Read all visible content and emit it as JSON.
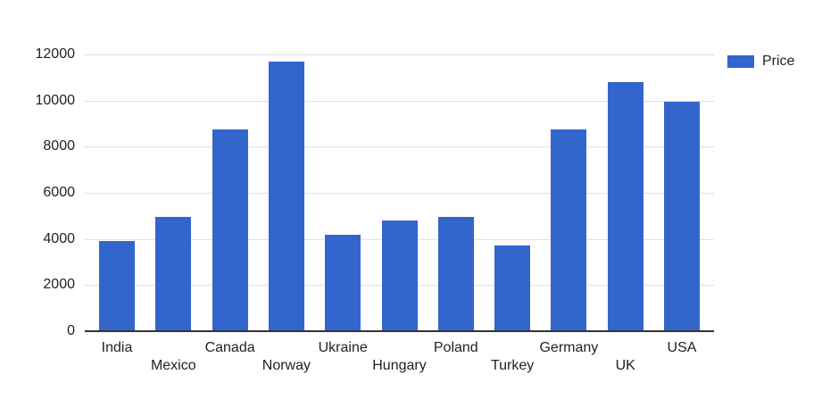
{
  "chart_data": {
    "type": "bar",
    "title": "",
    "categories": [
      "India",
      "Mexico",
      "Canada",
      "Norway",
      "Ukraine",
      "Hungary",
      "Poland",
      "Turkey",
      "Germany",
      "UK",
      "USA"
    ],
    "series": [
      {
        "name": "Price",
        "values": [
          3900,
          4950,
          8750,
          11700,
          4200,
          4800,
          4950,
          3700,
          8750,
          10800,
          9950
        ]
      }
    ],
    "xlabel": "",
    "ylabel": "",
    "ylim": [
      0,
      12000
    ],
    "yticks": [
      0,
      2000,
      4000,
      6000,
      8000,
      10000,
      12000
    ],
    "grid": true,
    "legend_position": "right",
    "x_labels_staggered": true
  },
  "legend": {
    "items": [
      {
        "label": "Price",
        "color": "#3366cc"
      }
    ]
  },
  "colors": {
    "bar": "#3366cc",
    "gridline": "#e0e0e0",
    "axis_line": "#333333",
    "label_text": "#222222",
    "background": "#ffffff"
  }
}
